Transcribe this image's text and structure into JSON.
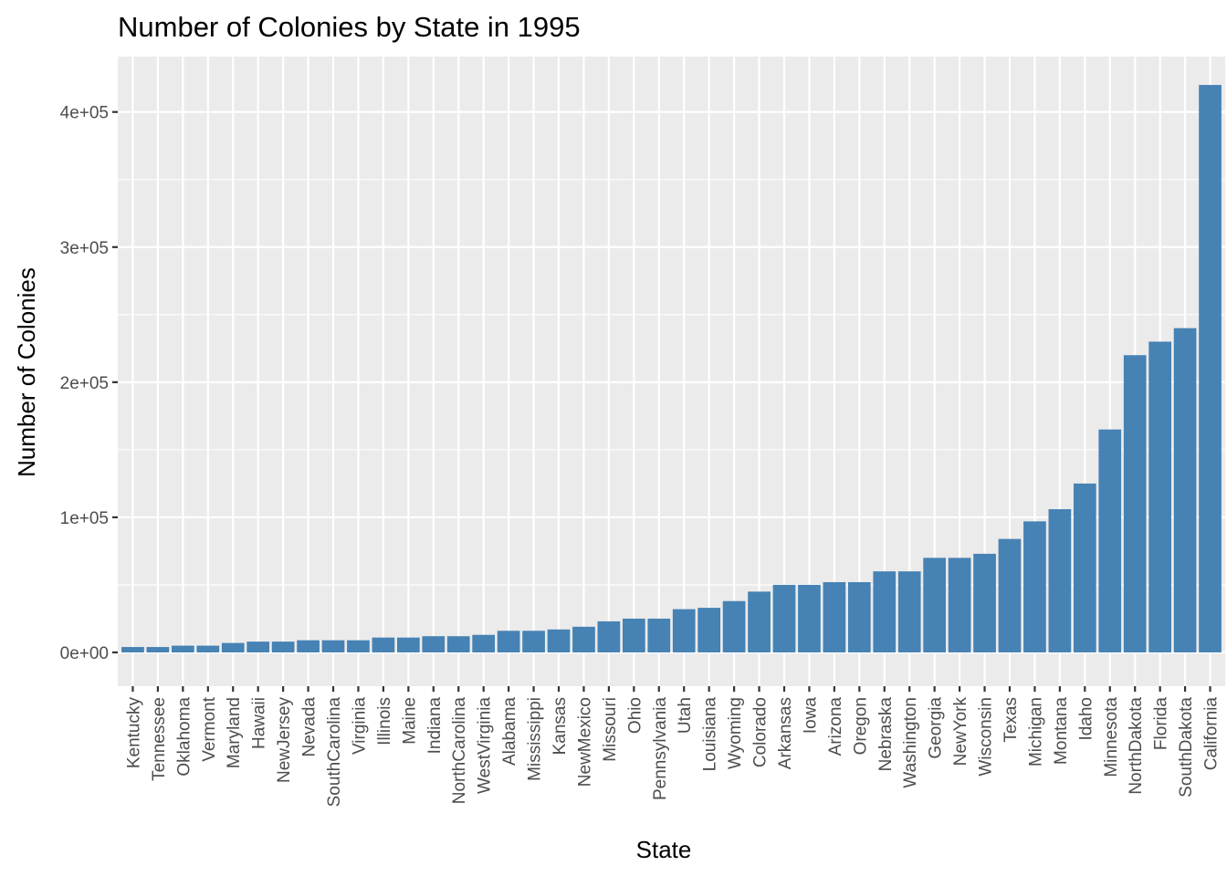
{
  "chart_data": {
    "type": "bar",
    "title": "Number of Colonies by State in 1995",
    "xlabel": "State",
    "ylabel": "Number of Colonies",
    "ylim": [
      -25000,
      441000
    ],
    "y_ticks": [
      0,
      100000,
      200000,
      300000,
      400000
    ],
    "y_tick_labels": [
      "0e+00",
      "1e+05",
      "2e+05",
      "3e+05",
      "4e+05"
    ],
    "grid": true,
    "bar_color": "#4682b4",
    "panel_color": "#ebebeb",
    "categories": [
      "Kentucky",
      "Tennessee",
      "Oklahoma",
      "Vermont",
      "Maryland",
      "Hawaii",
      "NewJersey",
      "Nevada",
      "SouthCarolina",
      "Virginia",
      "Illinois",
      "Maine",
      "Indiana",
      "NorthCarolina",
      "WestVirginia",
      "Alabama",
      "Mississippi",
      "Kansas",
      "NewMexico",
      "Missouri",
      "Ohio",
      "Pennsylvania",
      "Utah",
      "Louisiana",
      "Wyoming",
      "Colorado",
      "Arkansas",
      "Iowa",
      "Arizona",
      "Oregon",
      "Nebraska",
      "Washington",
      "Georgia",
      "NewYork",
      "Wisconsin",
      "Texas",
      "Michigan",
      "Montana",
      "Idaho",
      "Minnesota",
      "NorthDakota",
      "Florida",
      "SouthDakota",
      "California"
    ],
    "values": [
      4000,
      4000,
      5000,
      5000,
      7000,
      8000,
      8000,
      9000,
      9000,
      9000,
      11000,
      11000,
      12000,
      12000,
      13000,
      16000,
      16000,
      17000,
      19000,
      23000,
      25000,
      25000,
      32000,
      33000,
      38000,
      45000,
      50000,
      50000,
      52000,
      52000,
      60000,
      60000,
      70000,
      70000,
      73000,
      84000,
      97000,
      106000,
      125000,
      165000,
      220000,
      230000,
      240000,
      420000
    ]
  }
}
